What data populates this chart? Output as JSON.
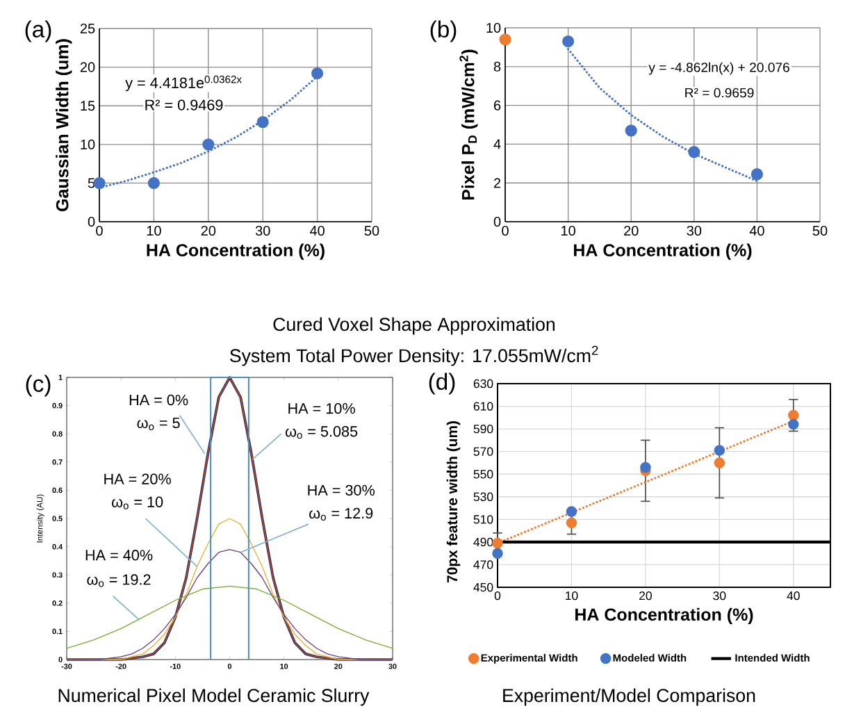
{
  "chart_data": [
    {
      "type": "scatter",
      "xlabel": "HA Concentration (%)",
      "ylabel": "Gaussian Width (um)",
      "xlim": [
        0,
        50
      ],
      "ylim": [
        0,
        25
      ],
      "xticks": [
        0,
        10,
        20,
        30,
        40,
        50
      ],
      "yticks": [
        0,
        5,
        10,
        15,
        20,
        25
      ],
      "grid": true,
      "marker": "circle",
      "series": [
        {
          "type": "scatter",
          "color": "#4472c4",
          "x": [
            0,
            10,
            20,
            30,
            40
          ],
          "values": [
            5,
            5,
            10,
            12.9,
            19.2
          ]
        },
        {
          "type": "line",
          "color": "#4472c4",
          "marker": "none",
          "line_style": "dotted",
          "x": [
            0,
            5,
            10,
            15,
            20,
            25,
            30,
            35,
            40
          ],
          "values": [
            4.4,
            5.3,
            6.4,
            7.6,
            9.1,
            10.9,
            13.1,
            15.7,
            18.8
          ]
        }
      ],
      "annotations": [
        "(a)",
        "y = 4.4181e$^{0.0362x}$",
        "R² = 0.9469",
        "Cured Voxel Shape Approximation",
        "System Total Power Density: 17.055mW/cm$^{2}$"
      ]
    },
    {
      "type": "scatter",
      "xlabel": "HA Concentration (%)",
      "ylabel": "Pixel P$_{D}$ (mW/cm$^{2}$)",
      "xlim": [
        0,
        50
      ],
      "ylim": [
        0,
        10
      ],
      "xticks": [
        0,
        10,
        20,
        30,
        40,
        50
      ],
      "yticks": [
        0,
        2,
        4,
        6,
        8,
        10
      ],
      "grid": true,
      "marker": "circle",
      "series": [
        {
          "type": "scatter",
          "color": "#ed7d31",
          "x": [
            0
          ],
          "values": [
            9.4
          ]
        },
        {
          "type": "scatter",
          "color": "#4472c4",
          "x": [
            10,
            20,
            30,
            40
          ],
          "values": [
            9.3,
            4.7,
            3.6,
            2.45
          ]
        },
        {
          "type": "line",
          "color": "#4472c4",
          "marker": "none",
          "line_style": "dotted",
          "x": [
            10,
            15,
            20,
            25,
            30,
            35,
            40
          ],
          "values": [
            8.9,
            6.9,
            5.5,
            4.4,
            3.5,
            2.8,
            2.1
          ]
        }
      ],
      "annotations": [
        "(b)",
        "y = -4.862ln(x) + 20.076",
        "R² = 0.9659"
      ]
    },
    {
      "type": "line",
      "ylabel": "Intensity (AU)",
      "xlim": [
        -30,
        30
      ],
      "ylim": [
        0,
        1
      ],
      "xticks": [
        -30,
        -20,
        -10,
        0,
        10,
        20,
        30
      ],
      "yticks": [
        0,
        0.1,
        0.2,
        0.3,
        0.4,
        0.5,
        0.6,
        0.7,
        0.8,
        0.9,
        1
      ],
      "grid": false,
      "marker": "none",
      "series": [
        {
          "color": "#1f2a5c",
          "x": [
            -30,
            -20,
            -16,
            -14,
            -12,
            -10,
            -8,
            -6,
            -4,
            -2,
            0,
            2,
            4,
            6,
            8,
            10,
            12,
            14,
            16,
            20,
            30
          ],
          "values": [
            0,
            0,
            0.01,
            0.02,
            0.06,
            0.15,
            0.29,
            0.5,
            0.73,
            0.93,
            1,
            0.93,
            0.73,
            0.5,
            0.29,
            0.15,
            0.06,
            0.02,
            0.01,
            0,
            0
          ]
        },
        {
          "color": "#d95319",
          "x": [
            -30,
            -20,
            -16,
            -14,
            -12,
            -10,
            -8,
            -6,
            -4,
            -2,
            0,
            2,
            4,
            6,
            8,
            10,
            12,
            14,
            16,
            20,
            30
          ],
          "values": [
            0,
            0,
            0.01,
            0.02,
            0.06,
            0.15,
            0.29,
            0.5,
            0.73,
            0.93,
            1,
            0.93,
            0.73,
            0.5,
            0.29,
            0.15,
            0.06,
            0.02,
            0.01,
            0,
            0
          ]
        },
        {
          "color": "#e6b030",
          "x": [
            -30,
            -24,
            -20,
            -18,
            -16,
            -14,
            -12,
            -10,
            -8,
            -6,
            -4,
            -2,
            0,
            2,
            4,
            6,
            8,
            10,
            12,
            14,
            16,
            18,
            20,
            24,
            30
          ],
          "values": [
            0,
            0,
            0,
            0.01,
            0.02,
            0.05,
            0.09,
            0.15,
            0.23,
            0.33,
            0.41,
            0.48,
            0.5,
            0.48,
            0.41,
            0.33,
            0.23,
            0.15,
            0.09,
            0.05,
            0.02,
            0.01,
            0,
            0,
            0
          ]
        },
        {
          "color": "#6b3d7a",
          "x": [
            -30,
            -24,
            -20,
            -18,
            -16,
            -14,
            -12,
            -10,
            -8,
            -6,
            -4,
            -2,
            0,
            2,
            4,
            6,
            8,
            10,
            12,
            14,
            16,
            18,
            20,
            24,
            30
          ],
          "values": [
            0,
            0,
            0.01,
            0.02,
            0.04,
            0.07,
            0.11,
            0.16,
            0.22,
            0.29,
            0.34,
            0.38,
            0.39,
            0.38,
            0.34,
            0.29,
            0.22,
            0.16,
            0.11,
            0.07,
            0.04,
            0.02,
            0.01,
            0,
            0
          ]
        },
        {
          "color": "#77ac30",
          "x": [
            -30,
            -25,
            -20,
            -15,
            -10,
            -5,
            0,
            5,
            10,
            15,
            20,
            25,
            30
          ],
          "values": [
            0.04,
            0.07,
            0.11,
            0.16,
            0.21,
            0.25,
            0.26,
            0.25,
            0.21,
            0.16,
            0.11,
            0.07,
            0.04
          ]
        },
        {
          "color": "#4a8cbf",
          "x": [
            -3.5,
            -3.5,
            3.5,
            3.5
          ],
          "values": [
            0,
            1,
            1,
            0
          ]
        }
      ],
      "annotations": [
        "(c)",
        "HA = 0%",
        {
          "text": "ω$_{o}$ = 5",
          "x": -4.6,
          "y": 0.73
        },
        "HA = 10%",
        {
          "text": "ω$_{o}$ = 5.085",
          "x": 4.2,
          "y": 0.71
        },
        "HA = 20%",
        {
          "text": "ω$_{o}$ = 10",
          "x": -6,
          "y": 0.33
        },
        "HA = 30%",
        {
          "text": "ω$_{o}$ = 12.9",
          "x": 2,
          "y": 0.38
        },
        "HA = 40%",
        {
          "text": "ω$_{o}$ = 19.2",
          "x": -16.6,
          "y": 0.14
        },
        "Numerical Pixel Model Ceramic Slurry"
      ]
    },
    {
      "type": "scatter",
      "xlabel": "HA Concentration (%)",
      "ylabel": "70px feature width (um)",
      "xlim": [
        0,
        45
      ],
      "ylim": [
        450,
        630
      ],
      "xticks": [
        0,
        10,
        20,
        30,
        40
      ],
      "yticks": [
        450,
        470,
        490,
        510,
        530,
        550,
        570,
        590,
        610,
        630
      ],
      "grid": true,
      "marker": "circle",
      "legend": "bottom",
      "series": [
        {
          "name": "Experimental Width",
          "type": "scatter",
          "color": "#ed7d31",
          "x": [
            0,
            10,
            20,
            30,
            40
          ],
          "values": [
            489,
            507,
            553,
            560,
            602
          ],
          "errors": [
            9,
            10,
            27,
            31,
            14
          ]
        },
        {
          "name": "Modeled Width",
          "type": "scatter",
          "color": "#4472c4",
          "x": [
            0,
            10,
            20,
            30,
            40
          ],
          "values": [
            480,
            517,
            556,
            571,
            594
          ]
        },
        {
          "type": "line",
          "color": "#ed7d31",
          "marker": "none",
          "line_style": "dotted",
          "x": [
            0,
            40
          ],
          "values": [
            489,
            597
          ]
        },
        {
          "name": "Intended Width",
          "type": "line",
          "color": "#000000",
          "marker": "none",
          "x": [
            0,
            45
          ],
          "values": [
            490,
            490
          ]
        }
      ],
      "annotations": [
        "(d)",
        "Experiment/Model Comparison"
      ]
    }
  ]
}
